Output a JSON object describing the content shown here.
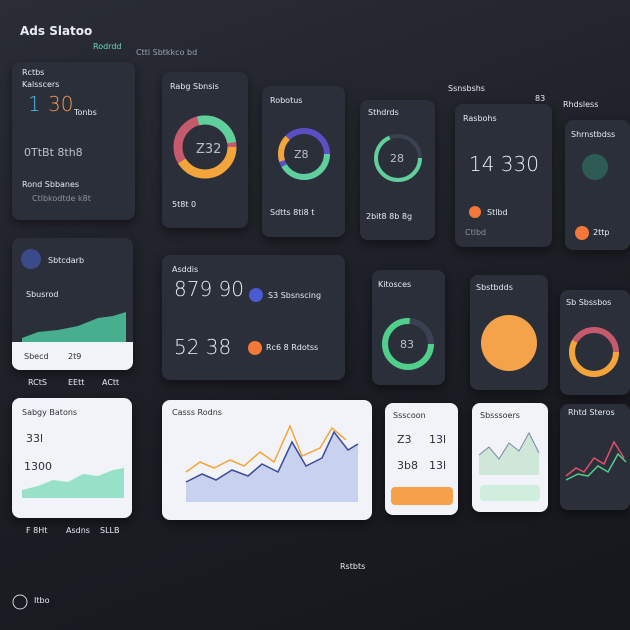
{
  "header": {
    "title": "Ads Slatoo",
    "tabs": [
      "Rodrdd",
      "Ctti Sbtkkco bd"
    ],
    "right": [
      "Ssnsbshs",
      "83",
      "Rhdsless"
    ]
  },
  "cards": [
    {
      "title": "Rctbs",
      "subtitle": "Kalsscers",
      "big": "1",
      "big2": "30",
      "note": "Tonbs",
      "value": "0TtBt 8th8",
      "label": "Rond Sbbanes",
      "foot": "Ctlbkodtde k8t"
    },
    {
      "title": "Rabg Sbnsis",
      "center": "Z32",
      "foot": "5t8t 0"
    },
    {
      "title": "Robotus",
      "center": "Z8",
      "foot": "Sdtts 8ti8 t"
    },
    {
      "title": "Sthdrds",
      "center": "28",
      "foot": "2bit8 8b 8g"
    },
    {
      "title": "Rasbohs",
      "big": "14 330",
      "foot": "Stlbd",
      "foot2": "Ctlbd"
    },
    {
      "title": "Shrnstbdss",
      "foot": "2ttp"
    },
    {
      "title": "Sbtcdarb",
      "subtitle": "Sbusrod",
      "label": "Sbecd",
      "value": "2t9",
      "ticks": [
        "RCtS",
        "EEtt",
        "ACtt"
      ]
    },
    {
      "title": "Asddis",
      "big": "879 90",
      "note": "S3 Sbsnscing",
      "big2": "52 38",
      "note2": "Rc6 8 Rdotss"
    },
    {
      "title": "Kitosces",
      "center": "83"
    },
    {
      "title": "Sbstbdds"
    },
    {
      "title": "Sb Sbssbos"
    },
    {
      "title": "Sabgy Batons",
      "value": "33l",
      "big": "1300",
      "foot": "F 8Ht",
      "foot2": "Asdns",
      "foot3": "SLLB"
    },
    {
      "title": "Casss Rodns"
    },
    {
      "title": "Ssscoon",
      "cells": [
        "Z3",
        "13l",
        "3b8",
        "13l"
      ]
    },
    {
      "title": "Sbsssoers"
    },
    {
      "title": "Rhtd Steros"
    }
  ],
  "footer": {
    "left": "Itbo",
    "center": "Rstbts"
  }
}
